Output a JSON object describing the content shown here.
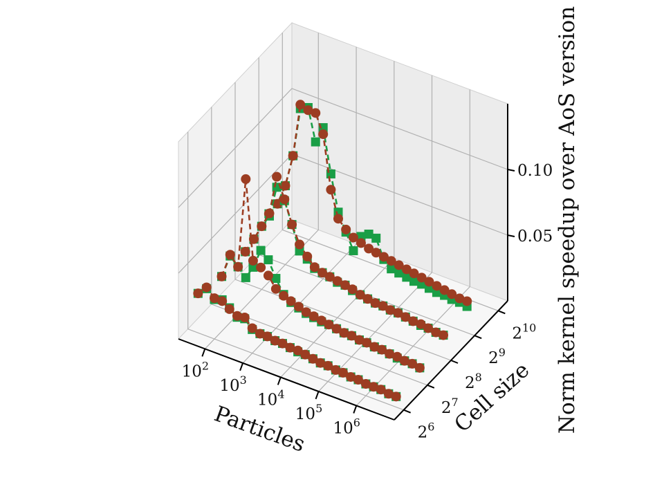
{
  "chart_data": {
    "type": "line3d",
    "title": "",
    "xlabel": "Particles",
    "ylabel": "Cell size",
    "zlabel": "Norm kernel speedup over AoS version",
    "x_scale": "log",
    "x_ticks": [
      {
        "value": 100,
        "label": "10",
        "sup": "2"
      },
      {
        "value": 1000,
        "label": "10",
        "sup": "3"
      },
      {
        "value": 10000,
        "label": "10",
        "sup": "4"
      },
      {
        "value": 100000,
        "label": "10",
        "sup": "5"
      },
      {
        "value": 1000000,
        "label": "10",
        "sup": "6"
      }
    ],
    "y_ticks": [
      {
        "value": 64,
        "label": "2",
        "sup": "6"
      },
      {
        "value": 128,
        "label": "2",
        "sup": "7"
      },
      {
        "value": 256,
        "label": "2",
        "sup": "8"
      },
      {
        "value": 512,
        "label": "2",
        "sup": "9"
      },
      {
        "value": 1024,
        "label": "2",
        "sup": "10"
      }
    ],
    "z_ticks": [
      {
        "value": 0.05,
        "label": "0.05"
      },
      {
        "value": 0.1,
        "label": "0.10"
      }
    ],
    "zlim": [
      0.0,
      0.15
    ],
    "grid": true,
    "legend": "none",
    "series": [
      {
        "marker": "square",
        "color": "#1a9e46",
        "dash": true,
        "lines": [
          {
            "y": 64,
            "x": [
              37,
              62,
              100,
              160,
              250,
              400,
              630,
              1000,
              1600,
              2500,
              4000,
              6300,
              10000,
              16000,
              25000,
              40000,
              63000,
              100000,
              160000,
              250000,
              400000,
              630000,
              1000000,
              1600000,
              2500000,
              4000000,
              6300000
            ],
            "z": [
              0.03,
              0.036,
              0.03,
              0.032,
              0.028,
              0.023,
              0.024,
              0.018,
              0.017,
              0.017,
              0.016,
              0.016,
              0.015,
              0.014,
              0.014,
              0.013,
              0.012,
              0.012,
              0.011,
              0.011,
              0.01,
              0.01,
              0.009,
              0.009,
              0.009,
              0.008,
              0.008
            ]
          },
          {
            "y": 128,
            "x": [
              37,
              62,
              100,
              160,
              250,
              400,
              630,
              1000,
              1600,
              2500,
              4000,
              6300,
              10000,
              16000,
              25000,
              40000,
              63000,
              100000,
              160000,
              250000,
              400000,
              630000,
              1000000,
              1600000,
              2500000,
              4000000,
              6300000
            ],
            "z": [
              0.024,
              0.042,
              0.036,
              0.03,
              0.04,
              0.055,
              0.05,
              0.038,
              0.028,
              0.024,
              0.022,
              0.02,
              0.019,
              0.018,
              0.018,
              0.017,
              0.016,
              0.016,
              0.015,
              0.015,
              0.014,
              0.014,
              0.013,
              0.012,
              0.012,
              0.012,
              0.011
            ]
          },
          {
            "y": 256,
            "x": [
              37,
              62,
              100,
              160,
              250,
              400,
              630,
              1000,
              1600,
              2500,
              4000,
              6300,
              10000,
              16000,
              25000,
              40000,
              63000,
              100000,
              160000,
              250000,
              400000,
              630000,
              1000000,
              1600000,
              2500000,
              4000000,
              6300000
            ],
            "z": [
              0.024,
              0.036,
              0.048,
              0.058,
              0.082,
              0.074,
              0.058,
              0.04,
              0.036,
              0.031,
              0.03,
              0.029,
              0.027,
              0.027,
              0.025,
              0.024,
              0.023,
              0.022,
              0.022,
              0.021,
              0.021,
              0.02,
              0.019,
              0.018,
              0.018,
              0.017,
              0.017
            ]
          },
          {
            "y": 512,
            "x": [
              37,
              62,
              100,
              160,
              250,
              400,
              630,
              1000,
              1600,
              2500,
              4000,
              6300,
              10000,
              16000,
              25000,
              40000,
              63000,
              100000,
              160000,
              250000,
              400000,
              630000,
              1000000,
              1600000,
              2500000,
              4000000,
              6300000
            ],
            "z": [
              0.034,
              0.044,
              0.06,
              0.085,
              0.123,
              0.126,
              0.102,
              0.115,
              0.082,
              0.055,
              0.042,
              0.03,
              0.043,
              0.047,
              0.046,
              0.032,
              0.027,
              0.026,
              0.025,
              0.024,
              0.024,
              0.023,
              0.022,
              0.022,
              0.021,
              0.021,
              0.02
            ]
          }
        ]
      },
      {
        "marker": "circle",
        "color": "#9c3d22",
        "dash": true,
        "lines": [
          {
            "y": 64,
            "x": [
              37,
              62,
              100,
              160,
              250,
              400,
              630,
              1000,
              1600,
              2500,
              4000,
              6300,
              10000,
              16000,
              25000,
              40000,
              63000,
              100000,
              160000,
              250000,
              400000,
              630000,
              1000000,
              1600000,
              2500000,
              4000000,
              6300000
            ],
            "z": [
              0.03,
              0.037,
              0.031,
              0.031,
              0.027,
              0.024,
              0.025,
              0.019,
              0.017,
              0.017,
              0.016,
              0.016,
              0.015,
              0.015,
              0.014,
              0.013,
              0.012,
              0.012,
              0.011,
              0.011,
              0.01,
              0.01,
              0.009,
              0.009,
              0.009,
              0.008,
              0.008
            ]
          },
          {
            "y": 128,
            "x": [
              37,
              62,
              100,
              160,
              250,
              400,
              630,
              1000,
              1600,
              2500,
              4000,
              6300,
              10000,
              16000,
              25000,
              40000,
              63000,
              100000,
              160000,
              250000,
              400000,
              630000,
              1000000,
              1600000,
              2500000,
              4000000,
              6300000
            ],
            "z": [
              0.024,
              0.043,
              0.036,
              0.105,
              0.045,
              0.042,
              0.038,
              0.03,
              0.027,
              0.025,
              0.023,
              0.021,
              0.02,
              0.019,
              0.018,
              0.017,
              0.016,
              0.016,
              0.015,
              0.015,
              0.014,
              0.014,
              0.013,
              0.013,
              0.012,
              0.012,
              0.011
            ]
          },
          {
            "y": 256,
            "x": [
              37,
              62,
              100,
              160,
              250,
              400,
              630,
              1000,
              1600,
              2500,
              4000,
              6300,
              10000,
              16000,
              25000,
              40000,
              63000,
              100000,
              160000,
              250000,
              400000,
              630000,
              1000000,
              1600000,
              2500000,
              4000000,
              6300000
            ],
            "z": [
              0.024,
              0.036,
              0.048,
              0.06,
              0.09,
              0.075,
              0.058,
              0.045,
              0.038,
              0.032,
              0.03,
              0.029,
              0.028,
              0.027,
              0.026,
              0.024,
              0.023,
              0.022,
              0.022,
              0.021,
              0.021,
              0.02,
              0.019,
              0.019,
              0.018,
              0.017,
              0.017
            ]
          },
          {
            "y": 512,
            "x": [
              37,
              62,
              100,
              160,
              250,
              400,
              630,
              1000,
              1600,
              2500,
              4000,
              6300,
              10000,
              16000,
              25000,
              40000,
              63000,
              100000,
              160000,
              250000,
              400000,
              630000,
              1000000,
              1600000,
              2500000,
              4000000,
              6300000
            ],
            "z": [
              0.034,
              0.044,
              0.06,
              0.085,
              0.126,
              0.124,
              0.124,
              0.11,
              0.07,
              0.05,
              0.044,
              0.04,
              0.038,
              0.036,
              0.035,
              0.034,
              0.033,
              0.032,
              0.031,
              0.03,
              0.029,
              0.028,
              0.027,
              0.026,
              0.025,
              0.024,
              0.024
            ]
          }
        ]
      }
    ]
  }
}
